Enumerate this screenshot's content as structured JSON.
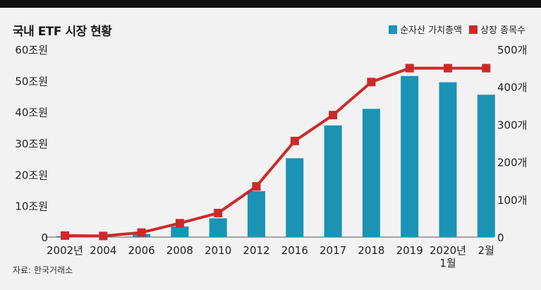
{
  "chart_data": {
    "type": "bar+line",
    "title": "국내 ETF 시장 현황",
    "categories": [
      [
        "2002년"
      ],
      [
        "2004"
      ],
      [
        "2006"
      ],
      [
        "2008"
      ],
      [
        "2010"
      ],
      [
        "2012"
      ],
      [
        "2016"
      ],
      [
        "2017"
      ],
      [
        "2018"
      ],
      [
        "2019"
      ],
      [
        "2020년",
        "1월"
      ],
      [
        "2월"
      ]
    ],
    "series": [
      {
        "name": "순자산 가치총액",
        "type": "bar",
        "axis": "left",
        "color": "#1a93b5",
        "values": [
          0.3,
          0.5,
          1.0,
          3.4,
          6.0,
          14.7,
          25.2,
          35.7,
          41.0,
          51.5,
          49.5,
          45.5
        ]
      },
      {
        "name": "상장 종목수",
        "type": "line",
        "axis": "right",
        "color": "#cc2a2a",
        "values": [
          4,
          3,
          12,
          37,
          64,
          135,
          256,
          325,
          413,
          450,
          450,
          450
        ]
      }
    ],
    "y_left": {
      "ylim": [
        0,
        60
      ],
      "ticks": [
        "0",
        "10조원",
        "20조원",
        "30조원",
        "40조원",
        "50조원",
        "60조원"
      ]
    },
    "y_right": {
      "ylim": [
        0,
        500
      ],
      "ticks": [
        "0",
        "100개",
        "200개",
        "300개",
        "400개",
        "500개"
      ]
    },
    "legend_position": "top-right",
    "grid": false,
    "source": "자료: 한국거래소"
  }
}
